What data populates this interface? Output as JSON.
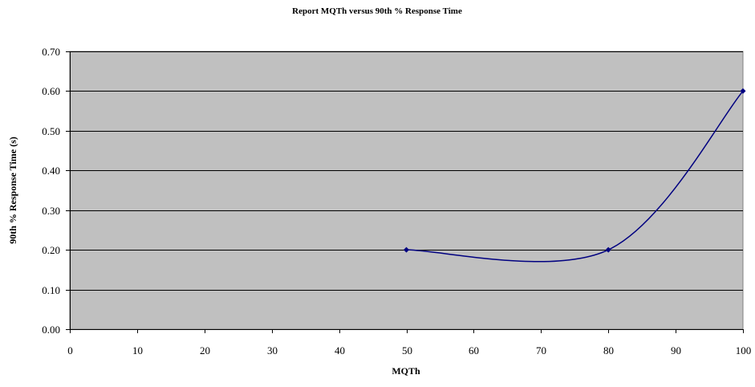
{
  "chart_data": {
    "type": "line",
    "title": "Report MQTh versus 90th % Response Time",
    "xlabel": "MQTh",
    "ylabel": "90th % Response Time (s)",
    "xlim": [
      0,
      100
    ],
    "ylim": [
      0,
      0.7
    ],
    "x_ticks": [
      "0",
      "10",
      "20",
      "30",
      "40",
      "50",
      "60",
      "70",
      "80",
      "90",
      "100"
    ],
    "y_ticks": [
      "0.00",
      "0.10",
      "0.20",
      "0.30",
      "0.40",
      "0.50",
      "0.60",
      "0.70"
    ],
    "grid": "horizontal",
    "legend": "none",
    "smooth": true,
    "series": [
      {
        "x": [
          50,
          80,
          100
        ],
        "y": [
          0.2,
          0.2,
          0.6
        ]
      }
    ],
    "colors": {
      "plot_background": "#c0c0c0",
      "line": "#000080",
      "grid": "#000000"
    }
  }
}
